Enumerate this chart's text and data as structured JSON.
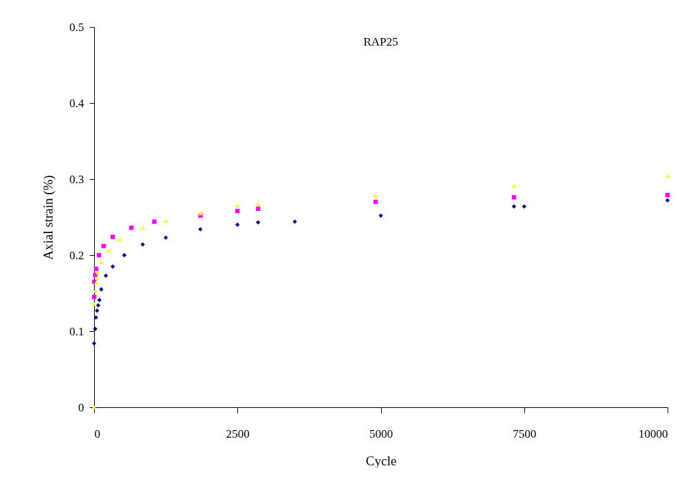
{
  "chart_data": {
    "type": "scatter",
    "title": "RAP25",
    "xlabel": "Cycle",
    "ylabel": "Axial strain (%)",
    "xlim": [
      0,
      10000
    ],
    "ylim": [
      0,
      0.5
    ],
    "xticks": [
      0,
      2500,
      5000,
      7500,
      10000
    ],
    "yticks": [
      0,
      0.1,
      0.2,
      0.3,
      0.4,
      0.5
    ],
    "series": [
      {
        "color": "#000080",
        "marker": "diamond",
        "x": [
          0,
          20,
          32,
          52,
          72,
          93,
          125,
          205,
          326,
          527,
          848,
          1250,
          1854,
          2500,
          2860,
          3500,
          5000,
          7322,
          7500,
          10000
        ],
        "values": [
          0.084,
          0.103,
          0.118,
          0.127,
          0.134,
          0.141,
          0.155,
          0.173,
          0.185,
          0.2,
          0.214,
          0.223,
          0.234,
          0.24,
          0.243,
          0.244,
          0.252,
          0.264,
          0.264,
          0.272
        ]
      },
      {
        "color": "#ff00ff",
        "marker": "square",
        "x": [
          0,
          4,
          20,
          36,
          85,
          165,
          326,
          648,
          1050,
          1854,
          2500,
          2860,
          4910,
          7322,
          10000
        ],
        "values": [
          0.145,
          0.165,
          0.174,
          0.182,
          0.2,
          0.212,
          0.224,
          0.236,
          0.244,
          0.252,
          0.258,
          0.261,
          0.27,
          0.276,
          0.279
        ]
      },
      {
        "color": "#ffff00",
        "marker": "triangle",
        "x": [
          0,
          4,
          20,
          36,
          52,
          69,
          125,
          245,
          446,
          848,
          1250,
          1854,
          2500,
          2860,
          4910,
          7322,
          10000
        ],
        "values": [
          0,
          0.136,
          0.153,
          0.164,
          0.17,
          0.177,
          0.191,
          0.206,
          0.221,
          0.236,
          0.245,
          0.255,
          0.265,
          0.267,
          0.278,
          0.291,
          0.304
        ]
      }
    ]
  }
}
